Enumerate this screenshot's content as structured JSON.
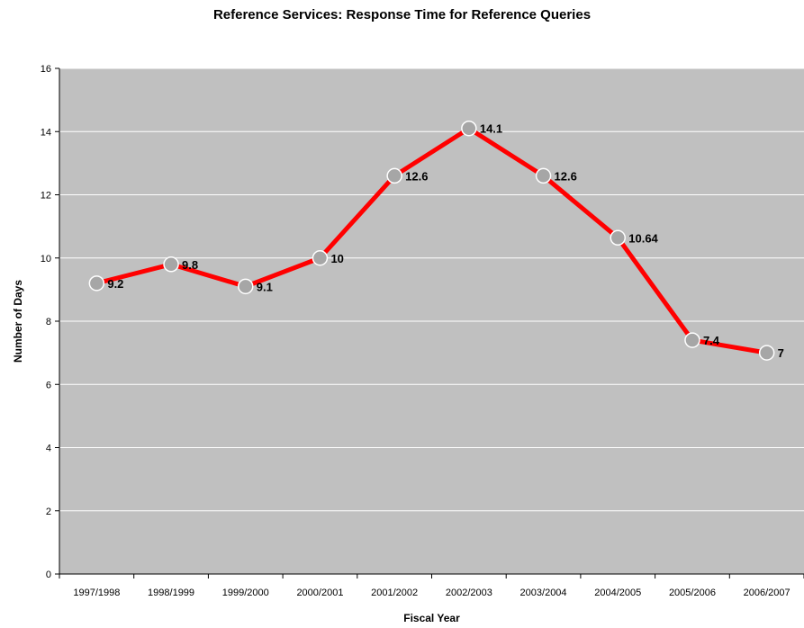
{
  "colors": {
    "plot_background": "#c0c0c0",
    "gridline": "#ffffff",
    "line": "#ff0000",
    "marker_fill": "#a6a6a6",
    "marker_stroke": "#ffffff",
    "text": "#000000"
  },
  "chart_data": {
    "type": "line",
    "title": "Reference Services: Response Time for Reference Queries",
    "xlabel": "Fiscal Year",
    "ylabel": "Number of Days",
    "categories": [
      "1997/1998",
      "1998/1999",
      "1999/2000",
      "2000/2001",
      "2001/2002",
      "2002/2003",
      "2003/2004",
      "2004/2005",
      "2005/2006",
      "2006/2007"
    ],
    "series": [
      {
        "values": [
          9.2,
          9.8,
          9.1,
          10,
          12.6,
          14.1,
          12.6,
          10.64,
          7.4,
          7
        ],
        "labels": [
          "9.2",
          "9.8",
          "9.1",
          "10",
          "12.6",
          "14.1",
          "12.6",
          "10.64",
          "7.4",
          "7"
        ]
      }
    ],
    "ylim": [
      0,
      16
    ],
    "yticks": [
      "0",
      "2",
      "4",
      "6",
      "8",
      "10",
      "12",
      "14",
      "16"
    ],
    "ytick_values": [
      0,
      2,
      4,
      6,
      8,
      10,
      12,
      14,
      16
    ],
    "grid": true,
    "legend": "none"
  }
}
